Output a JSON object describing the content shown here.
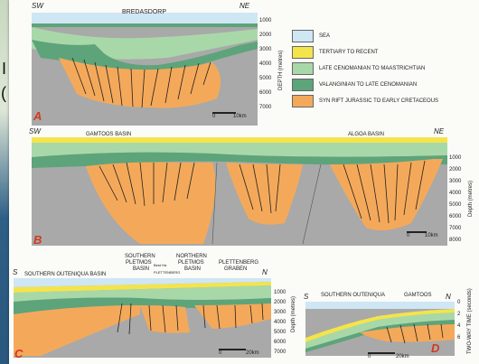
{
  "background": {
    "left_text_1": "I",
    "left_text_2": "("
  },
  "legend": [
    {
      "label": "SEA",
      "color": "#cfe6f4"
    },
    {
      "label": "TERTIARY TO RECENT",
      "color": "#f4e44c"
    },
    {
      "label": "LATE CENOMANIAN TO MAASTRICHTIAN",
      "color": "#a9d8a8"
    },
    {
      "label": "VALANGINIAN TO LATE CENOMANIAN",
      "color": "#5da47a"
    },
    {
      "label": "SYN RIFT JURASSIC TO EARLY CRETACEOUS",
      "color": "#f4a95a"
    }
  ],
  "sectionA": {
    "letter": "A",
    "sw": "SW",
    "ne": "NE",
    "title": "BREDASDORP",
    "depths": [
      "1000",
      "2000",
      "3000",
      "4000",
      "5000",
      "6000",
      "7000"
    ],
    "axis": "DEPTH (metres)",
    "scale": "10km",
    "scale0": "0"
  },
  "sectionB": {
    "letter": "B",
    "sw": "SW",
    "ne": "NE",
    "basin1": "GAMTOOS BASIN",
    "basin2": "ALGOA BASIN",
    "depths": [
      "1000",
      "2000",
      "3000",
      "4000",
      "5000",
      "6000",
      "7000",
      "8000"
    ],
    "axis": "Depth (metres)",
    "scale": "10km",
    "scale0": "0"
  },
  "sectionC": {
    "letter": "C",
    "s": "S",
    "n": "N",
    "basin1": "SOUTHERN OUTENIQUA BASIN",
    "basin2a": "SOUTHERN",
    "basin2b": "PLETMOS",
    "basin2c": "BASIN",
    "basin3a": "NORTHERN",
    "basin3b": "PLETMOS",
    "basin3c": "BASIN",
    "basin4a": "PLETTENBERG",
    "basin4b": "GRABEN",
    "small1": "Best Ha",
    "small2": "PLETTENBERG",
    "depths": [
      "1000",
      "2000",
      "3000",
      "4000",
      "5000",
      "6000",
      "7000"
    ],
    "axis": "Depth (metres)",
    "scale": "20km",
    "scale0": "0"
  },
  "sectionD": {
    "letter": "D",
    "s": "S",
    "n": "N",
    "basin1": "SOUTHERN OUTENIQUA",
    "basin2": "GAMTOOS",
    "depths": [
      "0",
      "2",
      "4",
      "6"
    ],
    "axis": "TWO-WAY TIME (seconds)",
    "scale": "20km",
    "scale0": "0"
  }
}
